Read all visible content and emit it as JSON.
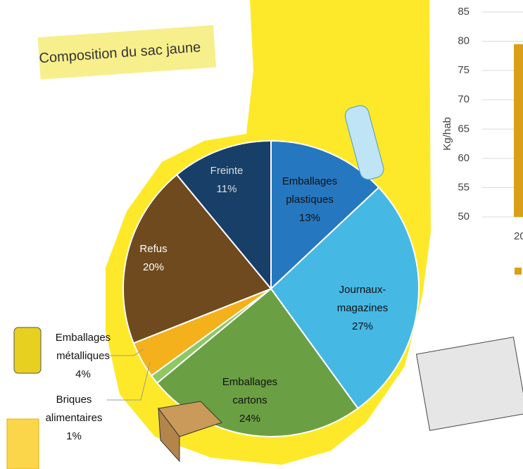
{
  "chart_data": [
    {
      "type": "pie",
      "title": "Composition du sac jaune",
      "categories": [
        "Emballages plastiques",
        "Journaux-magazines",
        "Emballages cartons",
        "Briques alimentaires",
        "Emballages métalliques",
        "Refus",
        "Freinte"
      ],
      "values": [
        13,
        27,
        24,
        1,
        4,
        20,
        11
      ],
      "value_labels": [
        "13%",
        "27%",
        "24%",
        "1%",
        "4%",
        "20%",
        "11%"
      ],
      "colors": [
        "#2577bf",
        "#46b8e4",
        "#6aa043",
        "#8ec764",
        "#f4b11c",
        "#6f4a1f",
        "#183f68"
      ]
    },
    {
      "type": "bar",
      "ylabel": "Kg/hab",
      "categories": [
        "20"
      ],
      "values": [
        79.5
      ],
      "color": "#d9a017",
      "ylim": [
        50,
        85
      ],
      "yticks": [
        50,
        55,
        60,
        65,
        70,
        75,
        80,
        85
      ],
      "grid": true
    }
  ]
}
